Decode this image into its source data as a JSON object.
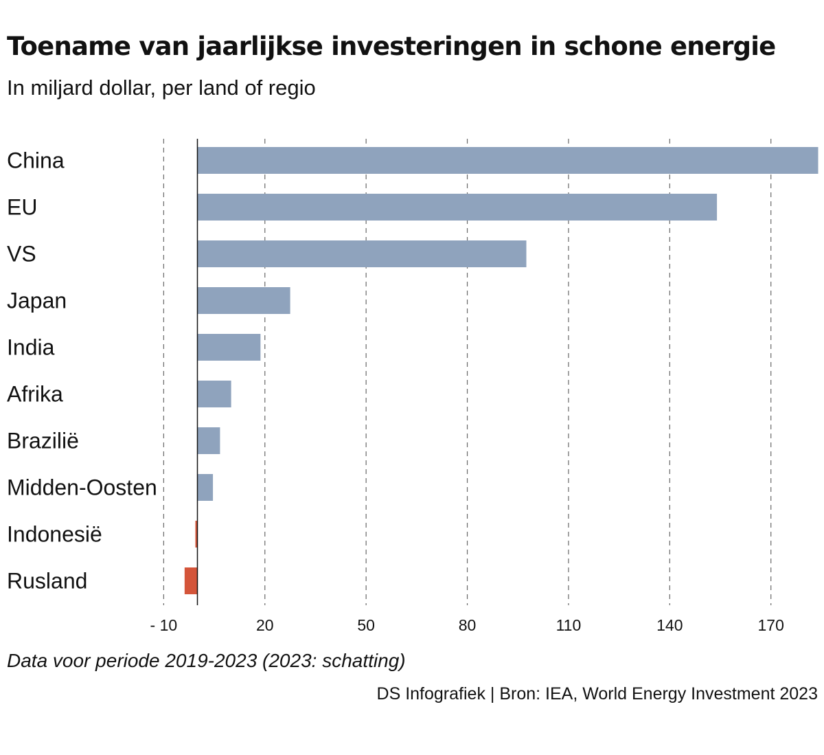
{
  "title": "Toename van jaarlijkse investeringen in schone energie",
  "subtitle": "In miljard dollar, per land of regio",
  "note": "Data voor periode 2019-2023 (2023: schatting)",
  "source": "DS Infografiek | Bron: IEA, World Energy Investment 2023",
  "colors": {
    "positive": "#8fa3bd",
    "negative": "#d4553a",
    "grid": "#666666",
    "axis": "#111111"
  },
  "chart_data": {
    "type": "bar",
    "orientation": "horizontal",
    "categories": [
      "China",
      "EU",
      "VS",
      "Japan",
      "India",
      "Afrika",
      "Brazilië",
      "Midden-Oosten",
      "Indonesië",
      "Rusland"
    ],
    "values": [
      184,
      154,
      97.5,
      27.5,
      18.7,
      10,
      6.7,
      4.6,
      -0.5,
      -3.8
    ],
    "xlim": [
      -10,
      184
    ],
    "ticks": [
      -10,
      20,
      50,
      80,
      110,
      140,
      170
    ],
    "tick_labels": [
      "- 10",
      "20",
      "50",
      "80",
      "110",
      "140",
      "170"
    ],
    "grid": true,
    "grid_style": "dashed vertical",
    "legend": "none"
  }
}
